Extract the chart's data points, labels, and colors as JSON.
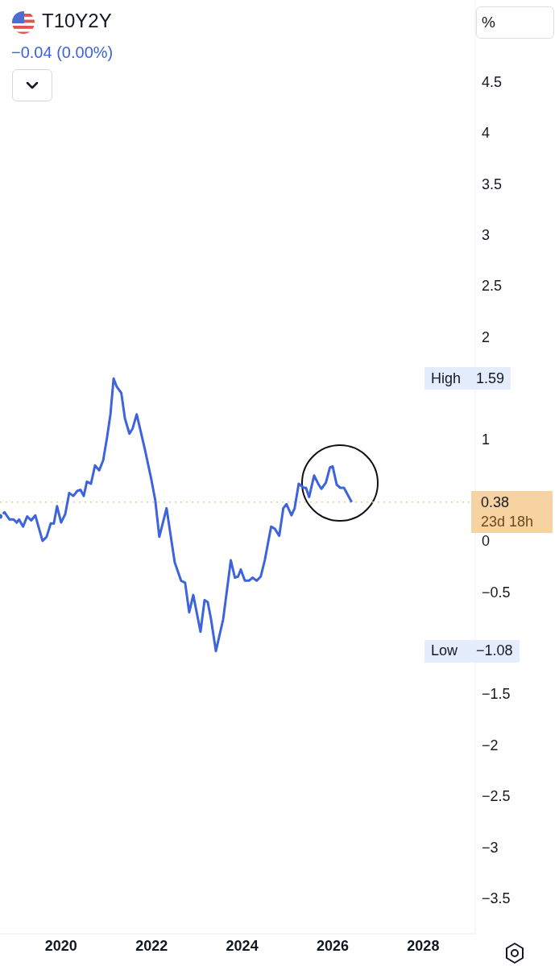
{
  "chart_data": {
    "type": "line",
    "title": "T10Y2Y",
    "subtitle": "−0.04 (0.00%)",
    "x": [
      2018.65,
      2018.75,
      2018.86,
      2018.95,
      2019.02,
      2019.07,
      2019.16,
      2019.25,
      2019.34,
      2019.43,
      2019.59,
      2019.68,
      2019.77,
      2019.84,
      2019.91,
      2020.0,
      2020.09,
      2020.18,
      2020.27,
      2020.36,
      2020.43,
      2020.5,
      2020.57,
      2020.66,
      2020.75,
      2020.84,
      2020.93,
      2021.01,
      2021.09,
      2021.16,
      2021.23,
      2021.33,
      2021.41,
      2021.51,
      2021.58,
      2021.67,
      2021.85,
      2021.99,
      2022.08,
      2022.17,
      2022.33,
      2022.51,
      2022.65,
      2022.74,
      2022.83,
      2022.92,
      2023.08,
      2023.17,
      2023.24,
      2023.31,
      2023.42,
      2023.58,
      2023.75,
      2023.84,
      2023.91,
      2023.97,
      2024.06,
      2024.15,
      2024.23,
      2024.32,
      2024.41,
      2024.5,
      2024.64,
      2024.72,
      2024.82,
      2024.91,
      2024.98,
      2025.09,
      2025.16,
      2025.25,
      2025.36,
      2025.41,
      2025.48,
      2025.59,
      2025.68,
      2025.75,
      2025.85,
      2025.94,
      2026.0,
      2026.09,
      2026.17,
      2026.25,
      2026.42
    ],
    "series": [
      {
        "color": "#3d63dd",
        "values": [
          0.24,
          0.28,
          0.21,
          0.21,
          0.18,
          0.21,
          0.14,
          0.24,
          0.2,
          0.25,
          0.0,
          0.04,
          0.17,
          0.17,
          0.34,
          0.18,
          0.26,
          0.47,
          0.44,
          0.49,
          0.5,
          0.44,
          0.58,
          0.56,
          0.74,
          0.69,
          0.79,
          1.0,
          1.24,
          1.59,
          1.51,
          1.45,
          1.2,
          1.05,
          1.1,
          1.24,
          0.9,
          0.61,
          0.4,
          0.04,
          0.32,
          -0.21,
          -0.39,
          -0.41,
          -0.7,
          -0.53,
          -0.89,
          -0.58,
          -0.6,
          -0.76,
          -1.08,
          -0.77,
          -0.19,
          -0.36,
          -0.35,
          -0.28,
          -0.39,
          -0.39,
          -0.36,
          -0.39,
          -0.35,
          -0.19,
          0.14,
          0.12,
          0.05,
          0.32,
          0.36,
          0.25,
          0.32,
          0.56,
          0.52,
          0.52,
          0.43,
          0.64,
          0.56,
          0.51,
          0.57,
          0.72,
          0.73,
          0.55,
          0.52,
          0.52,
          0.38
        ]
      }
    ],
    "xlim": [
      2018.65,
      2029.15
    ],
    "xticks": [
      2020,
      2022,
      2024,
      2026,
      2028
    ],
    "ylim": [
      -3.85,
      5.3
    ],
    "yticks": [
      {
        "value": -3.5,
        "label": "−3.5"
      },
      {
        "value": -3,
        "label": "−3"
      },
      {
        "value": -2.5,
        "label": "−2.5"
      },
      {
        "value": -2,
        "label": "−2"
      },
      {
        "value": -1.5,
        "label": "−1.5"
      },
      {
        "value": -0.5,
        "label": "−0.5"
      },
      0,
      1,
      2,
      2.5,
      3,
      3.5,
      4,
      4.5
    ],
    "ref_lines": [
      {
        "axis": "y",
        "value": 0.38,
        "label": "0.38",
        "color": "#f0c890",
        "line_style": "dotted"
      }
    ],
    "annotations": [
      "%",
      "High",
      "1.59",
      "Low",
      "−1.08",
      "23d 18h"
    ],
    "marker": "none",
    "line_style": "solid"
  }
}
